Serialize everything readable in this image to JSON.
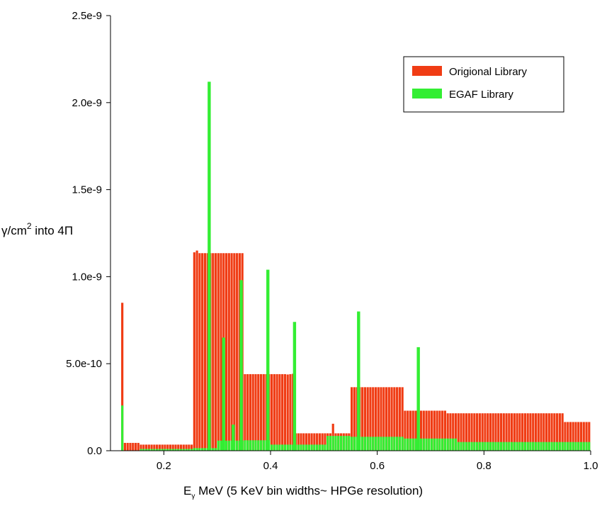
{
  "chart_data": {
    "type": "bar",
    "xlabel": {
      "symbol": "E",
      "subscript": "γ",
      "text": " MeV (5 KeV  bin widths~ HPGe resolution)"
    },
    "ylabel": {
      "prefix": "γ/cm",
      "superscript": "2",
      "suffix": " into 4Π"
    },
    "xlim": [
      0.1,
      1.0
    ],
    "ylim": [
      0,
      2.5e-09
    ],
    "x_ticks": [
      0.2,
      0.4,
      0.6,
      0.8,
      1.0
    ],
    "x_tick_labels": [
      "0.2",
      "0.4",
      "0.6",
      "0.8",
      "1.0"
    ],
    "y_ticks": [
      0,
      5e-10,
      1e-09,
      1.5e-09,
      2e-09,
      2.5e-09
    ],
    "y_tick_labels": [
      "0.0",
      "5.0e-10",
      "1.0e-9",
      "1.5e-9",
      "2.0e-9",
      "2.5e-9"
    ],
    "bin_width": 0.005,
    "grid": false,
    "legend_position": "top-right",
    "series": [
      {
        "name": "Origional Library",
        "color": "#f03c14",
        "segments": [
          {
            "x0": 0.12,
            "x1": 0.125,
            "y": 8.5e-10
          },
          {
            "x0": 0.125,
            "x1": 0.155,
            "y": 4.5e-11
          },
          {
            "x0": 0.155,
            "x1": 0.255,
            "y": 3.5e-11
          },
          {
            "x0": 0.255,
            "x1": 0.26,
            "y": 1.14e-09
          },
          {
            "x0": 0.26,
            "x1": 0.265,
            "y": 1.15e-09
          },
          {
            "x0": 0.265,
            "x1": 0.35,
            "y": 1.135e-09
          },
          {
            "x0": 0.35,
            "x1": 0.43,
            "y": 4.4e-10
          },
          {
            "x0": 0.43,
            "x1": 0.435,
            "y": 4.38e-10
          },
          {
            "x0": 0.435,
            "x1": 0.44,
            "y": 4.4e-10
          },
          {
            "x0": 0.44,
            "x1": 0.445,
            "y": 4.42e-10
          },
          {
            "x0": 0.445,
            "x1": 0.515,
            "y": 1e-10
          },
          {
            "x0": 0.515,
            "x1": 0.52,
            "y": 1.55e-10
          },
          {
            "x0": 0.52,
            "x1": 0.55,
            "y": 1e-10
          },
          {
            "x0": 0.55,
            "x1": 0.65,
            "y": 3.65e-10
          },
          {
            "x0": 0.65,
            "x1": 0.73,
            "y": 2.3e-10
          },
          {
            "x0": 0.73,
            "x1": 0.95,
            "y": 2.15e-10
          },
          {
            "x0": 0.95,
            "x1": 1.0,
            "y": 1.65e-10
          }
        ]
      },
      {
        "name": "EGAF Library",
        "color": "#33ee33",
        "segments": [
          {
            "x0": 0.12,
            "x1": 0.125,
            "y": 2.6e-10
          },
          {
            "x0": 0.155,
            "x1": 0.255,
            "y": 1e-11
          },
          {
            "x0": 0.255,
            "x1": 0.3,
            "y": 1.5e-11
          },
          {
            "x0": 0.3,
            "x1": 0.35,
            "y": 5.8e-11
          },
          {
            "x0": 0.35,
            "x1": 0.4,
            "y": 6e-11
          },
          {
            "x0": 0.4,
            "x1": 0.445,
            "y": 3.5e-11
          },
          {
            "x0": 0.445,
            "x1": 0.505,
            "y": 3.5e-11
          },
          {
            "x0": 0.505,
            "x1": 0.55,
            "y": 8.5e-11
          },
          {
            "x0": 0.55,
            "x1": 0.65,
            "y": 8e-11
          },
          {
            "x0": 0.65,
            "x1": 0.75,
            "y": 7e-11
          },
          {
            "x0": 0.75,
            "x1": 1.0,
            "y": 5e-11
          }
        ],
        "peaks": [
          {
            "x": 0.285,
            "y": 2.12e-09
          },
          {
            "x": 0.312,
            "y": 6.5e-10
          },
          {
            "x": 0.33,
            "y": 1.5e-10
          },
          {
            "x": 0.345,
            "y": 9.8e-10
          },
          {
            "x": 0.395,
            "y": 1.04e-09
          },
          {
            "x": 0.445,
            "y": 7.4e-10
          },
          {
            "x": 0.565,
            "y": 8e-10
          },
          {
            "x": 0.677,
            "y": 5.95e-10
          }
        ]
      }
    ]
  }
}
